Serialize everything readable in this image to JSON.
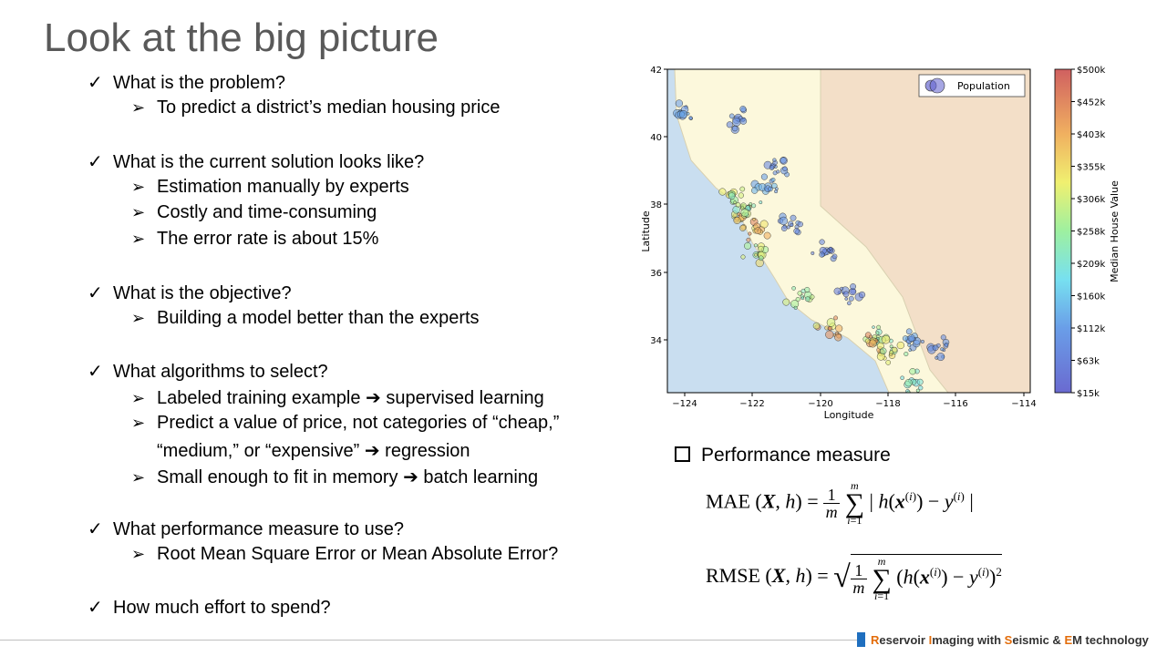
{
  "title": "Look at the big picture",
  "sections": [
    {
      "question": "What is the problem?",
      "answers": [
        "To predict a district’s median housing price"
      ]
    },
    {
      "question": "What is the current solution looks like?",
      "answers": [
        "Estimation manually by experts",
        "Costly and time-consuming",
        "The error rate is about 15%"
      ]
    },
    {
      "question": "What is the objective?",
      "answers": [
        "Building a model better than the experts"
      ]
    },
    {
      "question": "What algorithms to select?",
      "answers": [
        "Labeled training example ➔ supervised learning",
        "Predict a value of price, not categories of “cheap,”",
        "“medium,” or “expensive” ➔ regression",
        "Small enough to fit in memory ➔ batch learning"
      ]
    },
    {
      "question": "What performance measure to use?",
      "answers": [
        "Root Mean Square Error or Mean Absolute Error?"
      ]
    },
    {
      "question": "How much effort to spend?",
      "answers": []
    }
  ],
  "chart_data": {
    "type": "scatter",
    "title": "",
    "xlabel": "Longitude",
    "ylabel": "Latitude",
    "xlim": [
      -124.5,
      -113.8
    ],
    "ylim": [
      32.5,
      42.1
    ],
    "x_ticks": [
      "−124",
      "−122",
      "−120",
      "−118",
      "−116",
      "−114"
    ],
    "y_ticks": [
      "34",
      "36",
      "38",
      "40",
      "42"
    ],
    "legend": {
      "label": "Population",
      "placement": "top-right"
    },
    "colorbar": {
      "label": "Median House Value",
      "ticks": [
        "$500k",
        "$452k",
        "$403k",
        "$355k",
        "$306k",
        "$258k",
        "$209k",
        "$160k",
        "$112k",
        "$63k",
        "$15k"
      ]
    },
    "clusters": [
      {
        "x": -122.3,
        "y": 37.7,
        "value": 350000
      },
      {
        "x": -121.9,
        "y": 37.3,
        "value": 380000
      },
      {
        "x": -122.1,
        "y": 38.0,
        "value": 250000
      },
      {
        "x": -121.5,
        "y": 38.6,
        "value": 120000
      },
      {
        "x": -121.3,
        "y": 39.2,
        "value": 90000
      },
      {
        "x": -120.8,
        "y": 37.5,
        "value": 90000
      },
      {
        "x": -119.8,
        "y": 36.7,
        "value": 70000
      },
      {
        "x": -119.2,
        "y": 35.4,
        "value": 70000
      },
      {
        "x": -118.3,
        "y": 34.1,
        "value": 250000
      },
      {
        "x": -118.4,
        "y": 34.0,
        "value": 400000
      },
      {
        "x": -117.9,
        "y": 33.7,
        "value": 300000
      },
      {
        "x": -117.2,
        "y": 32.8,
        "value": 220000
      },
      {
        "x": -117.3,
        "y": 34.1,
        "value": 110000
      },
      {
        "x": -116.3,
        "y": 33.8,
        "value": 100000
      },
      {
        "x": -119.7,
        "y": 34.4,
        "value": 380000
      },
      {
        "x": -121.9,
        "y": 36.6,
        "value": 300000
      },
      {
        "x": -124.1,
        "y": 40.8,
        "value": 110000
      },
      {
        "x": -122.4,
        "y": 40.6,
        "value": 90000
      },
      {
        "x": -122.6,
        "y": 38.4,
        "value": 280000
      },
      {
        "x": -120.6,
        "y": 35.3,
        "value": 260000
      }
    ]
  },
  "performance": {
    "heading": "Performance measure",
    "mae_label": "MAE",
    "rmse_label": "RMSE"
  },
  "footer": {
    "r": "R",
    "eservoir": "eservoir ",
    "i": "I",
    "maging": "maging with ",
    "s": "S",
    "eismic": "eismic & ",
    "e": "E",
    "m": "M technology"
  }
}
